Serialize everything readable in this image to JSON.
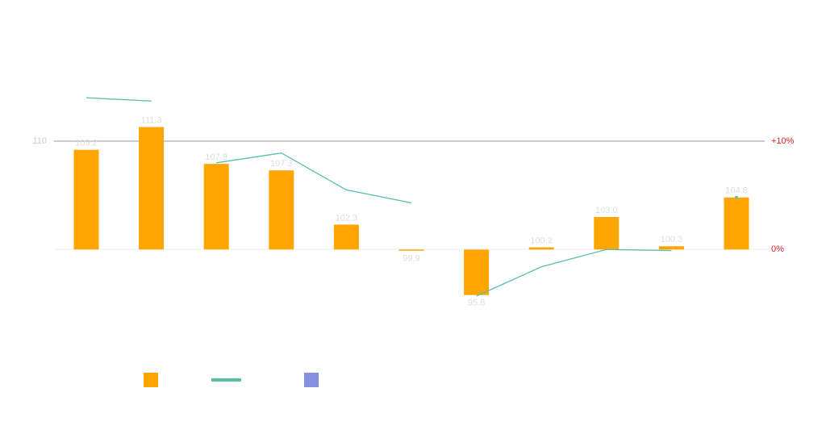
{
  "chart_data": {
    "type": "bar-line",
    "categories": [
      null,
      null,
      null,
      null,
      null,
      null,
      null,
      null,
      null,
      null,
      null
    ],
    "series": [
      {
        "type": "bar",
        "color": "#ffa500",
        "values": [
          109.2,
          111.3,
          107.9,
          107.3,
          102.3,
          99.9,
          95.8,
          100.2,
          103.0,
          100.3,
          104.8
        ],
        "value_labels": [
          "109.2",
          "111.3",
          "107.9",
          "107.3",
          "102.3",
          "99.9",
          "95.8",
          "100.2",
          "103.0",
          "100.3",
          "104.8"
        ]
      },
      {
        "type": "line",
        "axis": "y2",
        "color": "#5bbfa8",
        "values": [
          14.0,
          13.7,
          8.0,
          8.9,
          5.5,
          4.3,
          -4.3,
          -1.6,
          0.0,
          -0.1,
          4.8
        ],
        "breaks_after": [
          1,
          5,
          9
        ]
      },
      {
        "type": "bar",
        "color": "#8590e0",
        "values": [
          null,
          null,
          null,
          null,
          null,
          null,
          null,
          null,
          null,
          null,
          null
        ]
      }
    ],
    "ylim": [
      91,
      120
    ],
    "yticks": [
      110
    ],
    "y2lim": [
      -9,
      20
    ],
    "y2ticks": [
      {
        "value": 10,
        "label": "+10%"
      },
      {
        "value": 0,
        "label": "0%"
      }
    ],
    "grid": true
  }
}
